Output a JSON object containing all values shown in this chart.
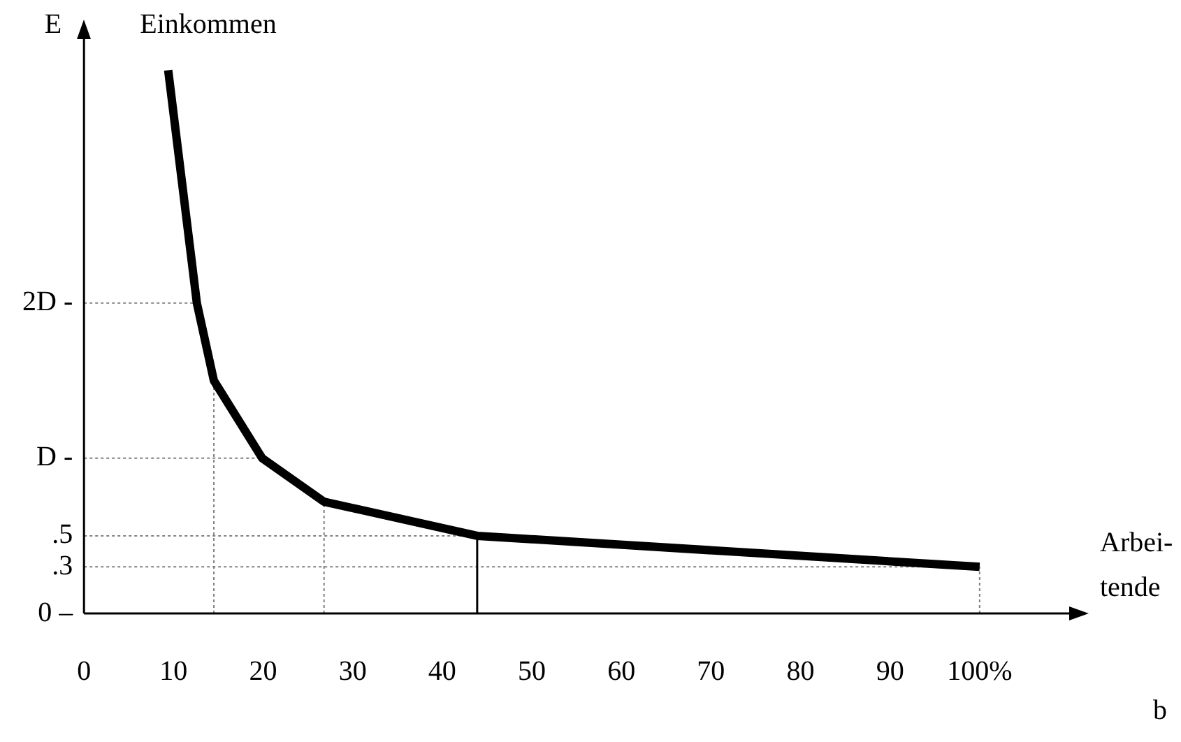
{
  "chart_data": {
    "type": "line",
    "xlabel": "b",
    "ylabel": "E",
    "annotations": [
      "Einkommen",
      "Arbei-tende"
    ],
    "x": [
      9.4,
      12.6,
      14.5,
      19.9,
      26.8,
      43.9,
      100
    ],
    "series": [
      {
        "color": "#000000",
        "values": [
          3.5,
          2.0,
          1.5,
          1.0,
          0.72,
          0.5,
          0.3
        ]
      }
    ],
    "xlim": [
      0,
      110
    ],
    "xticks": [
      0,
      10,
      20,
      30,
      40,
      50,
      60,
      70,
      80,
      90,
      {
        "value": 100,
        "label": "100%"
      }
    ],
    "ylim": [
      0,
      3.7
    ],
    "yticks": [
      {
        "value": 0,
        "label": "0 –"
      },
      {
        "value": 0.3,
        "label": ".3"
      },
      {
        "value": 0.5,
        "label": ".5"
      },
      {
        "value": 1,
        "label": "D -"
      },
      {
        "value": 2,
        "label": "2D -"
      }
    ],
    "ref_lines": [
      {
        "axis": "y",
        "value": 2,
        "color": "#808080",
        "line_style": "dotted"
      },
      {
        "axis": "y",
        "value": 1,
        "color": "#808080",
        "line_style": "dotted"
      },
      {
        "axis": "y",
        "value": 0.5,
        "color": "#808080",
        "line_style": "dotted"
      },
      {
        "axis": "y",
        "value": 0.3,
        "color": "#808080",
        "line_style": "dotted"
      },
      {
        "axis": "x",
        "value": 14.5,
        "color": "#808080",
        "line_style": "dotted"
      },
      {
        "axis": "x",
        "value": 26.8,
        "color": "#808080",
        "line_style": "dotted"
      },
      {
        "axis": "x",
        "value": 43.9,
        "color": "#000000",
        "line_style": "solid"
      },
      {
        "axis": "x",
        "value": 100,
        "color": "#808080",
        "line_style": "dotted"
      }
    ],
    "grid": false,
    "legend": false
  }
}
